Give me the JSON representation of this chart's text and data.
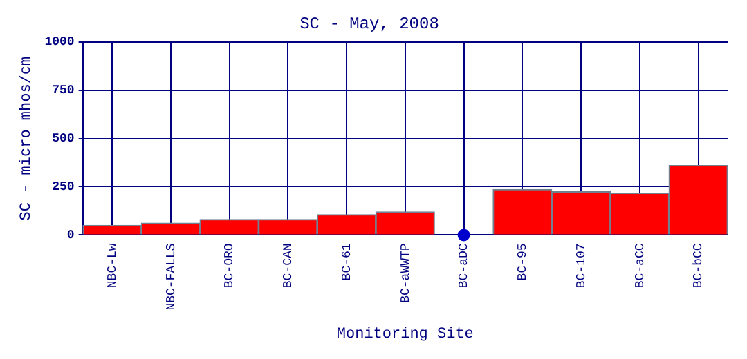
{
  "chart_data": {
    "type": "bar",
    "title": "SC - May, 2008",
    "xlabel": "Monitoring Site",
    "ylabel": "SC - micro mhos/cm",
    "categories": [
      "NBC-Lw",
      "NBC-FALLS",
      "BC-ORO",
      "BC-CAN",
      "BC-61",
      "BC-aWWTP",
      "BC-aDC",
      "BC-95",
      "BC-107",
      "BC-aCC",
      "BC-bCC"
    ],
    "series": [
      {
        "color": "#ff0000",
        "values": [
          50,
          62,
          80,
          80,
          105,
          120,
          null,
          236,
          224,
          217,
          360
        ]
      },
      {
        "type": "scatter",
        "color": "#0000cc",
        "x": [
          "BC-aDC"
        ],
        "values": [
          0
        ]
      }
    ],
    "ylim": [
      0,
      1000
    ],
    "yticks": [
      0,
      250,
      500,
      750,
      1000
    ],
    "grid": true,
    "legend": false
  }
}
